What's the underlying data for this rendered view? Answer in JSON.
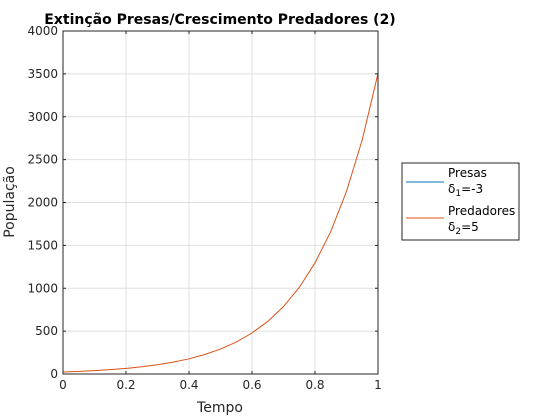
{
  "chart_data": {
    "type": "line",
    "title": "Extinção Presas/Crescimento Predadores (2)",
    "xlabel": "Tempo",
    "ylabel": "População",
    "xlim": [
      0,
      1
    ],
    "ylim": [
      0,
      4000
    ],
    "xticks": [
      "0",
      "0.2",
      "0.4",
      "0.6",
      "0.8",
      "1"
    ],
    "yticks": [
      "0",
      "500",
      "1000",
      "1500",
      "2000",
      "2500",
      "3000",
      "3500",
      "4000"
    ],
    "grid": true,
    "legend_position": "outside-right",
    "series": [
      {
        "name": "Presas",
        "legend_main": "δ",
        "legend_sub": "1",
        "legend_rest": "=-3",
        "color": "#0072BD",
        "x": [
          0,
          0.1,
          0.2,
          0.3,
          0.4,
          0.5,
          0.6,
          0.7,
          0.8,
          0.9,
          1.0
        ],
        "y": [
          0.5,
          0.37,
          0.27,
          0.2,
          0.15,
          0.11,
          0.08,
          0.06,
          0.05,
          0.03,
          0.02
        ]
      },
      {
        "name": "Predadores",
        "legend_main": "δ",
        "legend_sub": "2",
        "legend_rest": "=5",
        "color": "#D95319",
        "x": [
          0,
          0.05,
          0.1,
          0.15,
          0.2,
          0.25,
          0.3,
          0.35,
          0.4,
          0.45,
          0.5,
          0.55,
          0.6,
          0.65,
          0.7,
          0.75,
          0.8,
          0.85,
          0.9,
          0.95,
          1.0
        ],
        "y": [
          24,
          31,
          40,
          51,
          65,
          84,
          108,
          138,
          177,
          227,
          291,
          373,
          478,
          613,
          787,
          1009,
          1295,
          1661,
          2130,
          2732,
          3504
        ]
      }
    ]
  }
}
